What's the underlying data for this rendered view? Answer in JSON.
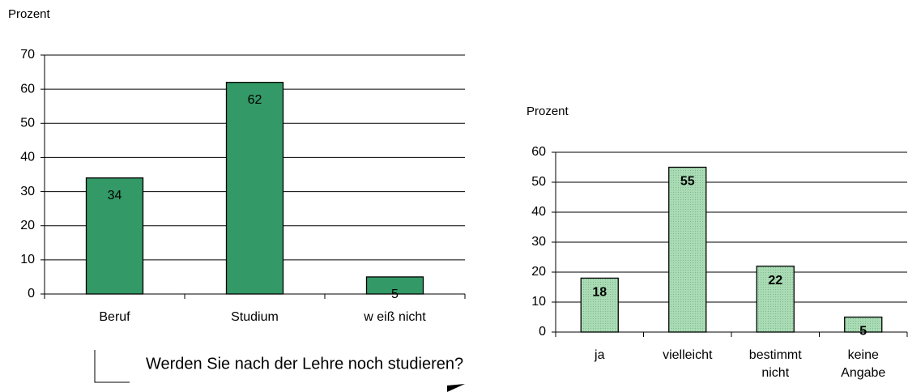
{
  "chart_data": [
    {
      "type": "bar",
      "y_label": "Prozent",
      "categories": [
        "Beruf",
        "Studium",
        "w eiß nicht"
      ],
      "values": [
        34,
        62,
        5
      ],
      "color": "#339966",
      "ylim": [
        0,
        70
      ],
      "yticks": [
        0,
        10,
        20,
        30,
        40,
        50,
        60,
        70
      ],
      "grid": true,
      "value_label_weight": "normal"
    },
    {
      "type": "bar",
      "y_label": "Prozent",
      "categories": [
        "ja",
        "vielleicht",
        "bestimmt nicht",
        "keine Angabe"
      ],
      "values": [
        18,
        55,
        22,
        5
      ],
      "color": "#a9dcb5",
      "ylim": [
        0,
        60
      ],
      "yticks": [
        0,
        10,
        20,
        30,
        40,
        50,
        60
      ],
      "grid": true,
      "value_label_weight": "bold"
    }
  ],
  "caption": "Werden Sie nach der Lehre noch studieren?"
}
